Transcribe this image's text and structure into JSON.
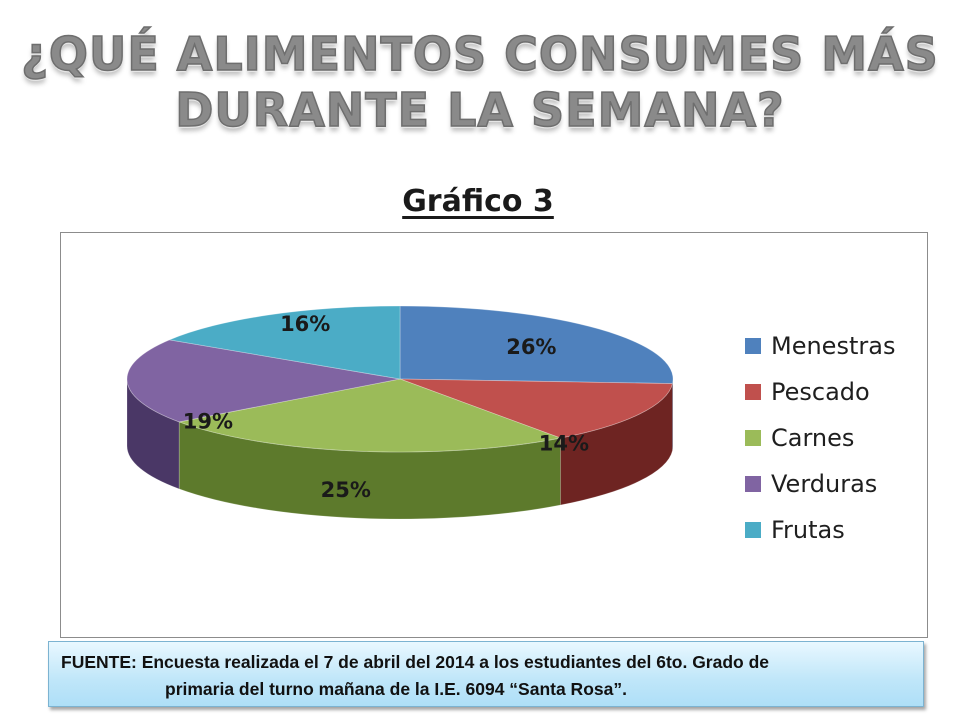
{
  "slide": {
    "title": "¿Qué alimentos consumes más durante la semana?",
    "chart_heading": "Gráfico 3",
    "source_line1": "FUENTE:  Encuesta realizada el 7 de abril del 2014 a los estudiantes del 6to. Grado de",
    "source_line2": "primaria del turno mañana de la I.E. 6094 “Santa Rosa”."
  },
  "chart_data": {
    "type": "pie",
    "title": "",
    "legend_position": "right",
    "slices": [
      {
        "label": "Menestras",
        "value": 26,
        "display": "26%",
        "color": "#4f81bd",
        "side": "#2e4d72"
      },
      {
        "label": "Pescado",
        "value": 14,
        "display": "14%",
        "color": "#c0504d",
        "side": "#6e2422"
      },
      {
        "label": "Carnes",
        "value": 25,
        "display": "25%",
        "color": "#9bbb59",
        "side": "#5d7a2c"
      },
      {
        "label": "Verduras",
        "value": 19,
        "display": "19%",
        "color": "#8064a2",
        "side": "#4a3766"
      },
      {
        "label": "Frutas",
        "value": 16,
        "display": "16%",
        "color": "#4bacc6",
        "side": "#2b6e80"
      }
    ]
  }
}
